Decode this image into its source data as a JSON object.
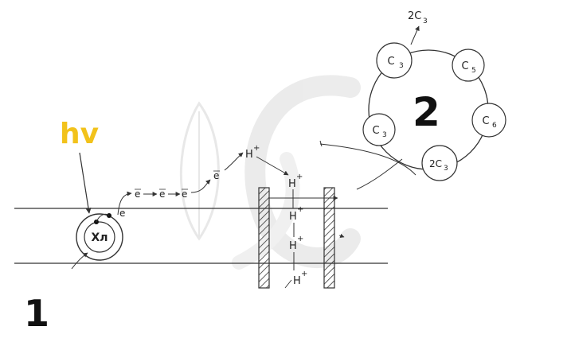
{
  "colors": {
    "line": "#333333",
    "hv": "#f2c21b",
    "watermark": "#d9d9d9"
  },
  "labels": {
    "light": "hv",
    "chlorophyll": "Хл",
    "stage1": "1",
    "stage2": "2",
    "electron": "e",
    "proton": "H",
    "plus": "+",
    "product": "2C",
    "product_sub": "3"
  },
  "cycle": {
    "nodes": [
      {
        "base": "C",
        "sub": "3"
      },
      {
        "base": "C",
        "sub": "5"
      },
      {
        "base": "C",
        "sub": "6"
      },
      {
        "base": "2C",
        "sub": "3"
      },
      {
        "base": "C",
        "sub": "3"
      }
    ]
  },
  "icons": {
    "watermark": "leaf-watermark-icon"
  }
}
